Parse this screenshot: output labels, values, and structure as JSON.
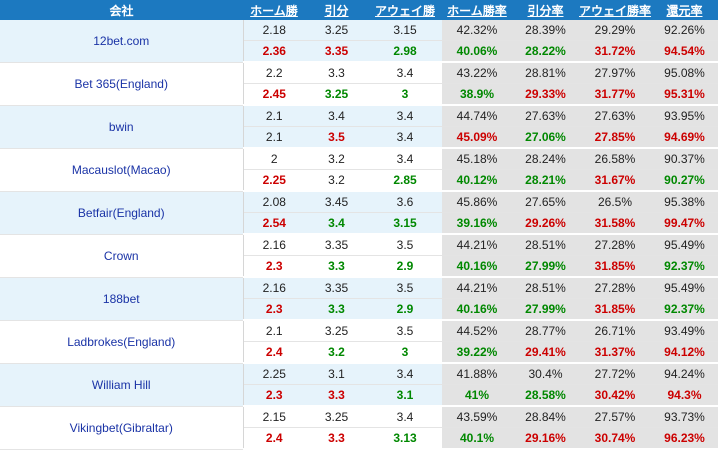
{
  "header": {
    "company": "会社",
    "home": "ホーム勝",
    "draw": "引分",
    "away": "アウェイ勝",
    "home_rate": "ホーム勝率",
    "draw_rate": "引分率",
    "away_rate": "アウェイ勝率",
    "return_rate": "還元率"
  },
  "colors": {
    "header_bg": "#1c79c0",
    "up": "#cc0000",
    "down": "#008800",
    "link": "#1a33a6"
  },
  "rows": [
    {
      "company": "12bet.com",
      "initial": [
        "2.18",
        "3.25",
        "3.15",
        "42.32%",
        "28.39%",
        "29.29%",
        "92.26%"
      ],
      "current": [
        "2.36",
        "3.35",
        "2.98",
        "40.06%",
        "28.22%",
        "31.72%",
        "94.54%"
      ],
      "cur_style": [
        "red",
        "red",
        "green",
        "green",
        "green",
        "red",
        "red"
      ]
    },
    {
      "company": "Bet 365(England)",
      "initial": [
        "2.2",
        "3.3",
        "3.4",
        "43.22%",
        "28.81%",
        "27.97%",
        "95.08%"
      ],
      "current": [
        "2.45",
        "3.25",
        "3",
        "38.9%",
        "29.33%",
        "31.77%",
        "95.31%"
      ],
      "cur_style": [
        "red",
        "green",
        "green",
        "green",
        "red",
        "red",
        "red"
      ]
    },
    {
      "company": "bwin",
      "initial": [
        "2.1",
        "3.4",
        "3.4",
        "44.74%",
        "27.63%",
        "27.63%",
        "93.95%"
      ],
      "current": [
        "2.1",
        "3.5",
        "3.4",
        "45.09%",
        "27.06%",
        "27.85%",
        "94.69%"
      ],
      "cur_style": [
        "",
        "red",
        "",
        "red",
        "green",
        "red",
        "red"
      ]
    },
    {
      "company": "Macauslot(Macao)",
      "initial": [
        "2",
        "3.2",
        "3.4",
        "45.18%",
        "28.24%",
        "26.58%",
        "90.37%"
      ],
      "current": [
        "2.25",
        "3.2",
        "2.85",
        "40.12%",
        "28.21%",
        "31.67%",
        "90.27%"
      ],
      "cur_style": [
        "red",
        "",
        "green",
        "green",
        "green",
        "red",
        "green"
      ]
    },
    {
      "company": "Betfair(England)",
      "initial": [
        "2.08",
        "3.45",
        "3.6",
        "45.86%",
        "27.65%",
        "26.5%",
        "95.38%"
      ],
      "current": [
        "2.54",
        "3.4",
        "3.15",
        "39.16%",
        "29.26%",
        "31.58%",
        "99.47%"
      ],
      "cur_style": [
        "red",
        "green",
        "green",
        "green",
        "red",
        "red",
        "red"
      ]
    },
    {
      "company": "Crown",
      "initial": [
        "2.16",
        "3.35",
        "3.5",
        "44.21%",
        "28.51%",
        "27.28%",
        "95.49%"
      ],
      "current": [
        "2.3",
        "3.3",
        "2.9",
        "40.16%",
        "27.99%",
        "31.85%",
        "92.37%"
      ],
      "cur_style": [
        "red",
        "green",
        "green",
        "green",
        "green",
        "red",
        "green"
      ]
    },
    {
      "company": "188bet",
      "initial": [
        "2.16",
        "3.35",
        "3.5",
        "44.21%",
        "28.51%",
        "27.28%",
        "95.49%"
      ],
      "current": [
        "2.3",
        "3.3",
        "2.9",
        "40.16%",
        "27.99%",
        "31.85%",
        "92.37%"
      ],
      "cur_style": [
        "red",
        "green",
        "green",
        "green",
        "green",
        "red",
        "green"
      ]
    },
    {
      "company": "Ladbrokes(England)",
      "initial": [
        "2.1",
        "3.25",
        "3.5",
        "44.52%",
        "28.77%",
        "26.71%",
        "93.49%"
      ],
      "current": [
        "2.4",
        "3.2",
        "3",
        "39.22%",
        "29.41%",
        "31.37%",
        "94.12%"
      ],
      "cur_style": [
        "red",
        "green",
        "green",
        "green",
        "red",
        "red",
        "red"
      ]
    },
    {
      "company": "William Hill",
      "initial": [
        "2.25",
        "3.1",
        "3.4",
        "41.88%",
        "30.4%",
        "27.72%",
        "94.24%"
      ],
      "current": [
        "2.3",
        "3.3",
        "3.1",
        "41%",
        "28.58%",
        "30.42%",
        "94.3%"
      ],
      "cur_style": [
        "red",
        "red",
        "green",
        "green",
        "green",
        "red",
        "red"
      ]
    },
    {
      "company": "Vikingbet(Gibraltar)",
      "initial": [
        "2.15",
        "3.25",
        "3.4",
        "43.59%",
        "28.84%",
        "27.57%",
        "93.73%"
      ],
      "current": [
        "2.4",
        "3.3",
        "3.13",
        "40.1%",
        "29.16%",
        "30.74%",
        "96.23%"
      ],
      "cur_style": [
        "red",
        "red",
        "green",
        "green",
        "red",
        "red",
        "red"
      ]
    }
  ]
}
